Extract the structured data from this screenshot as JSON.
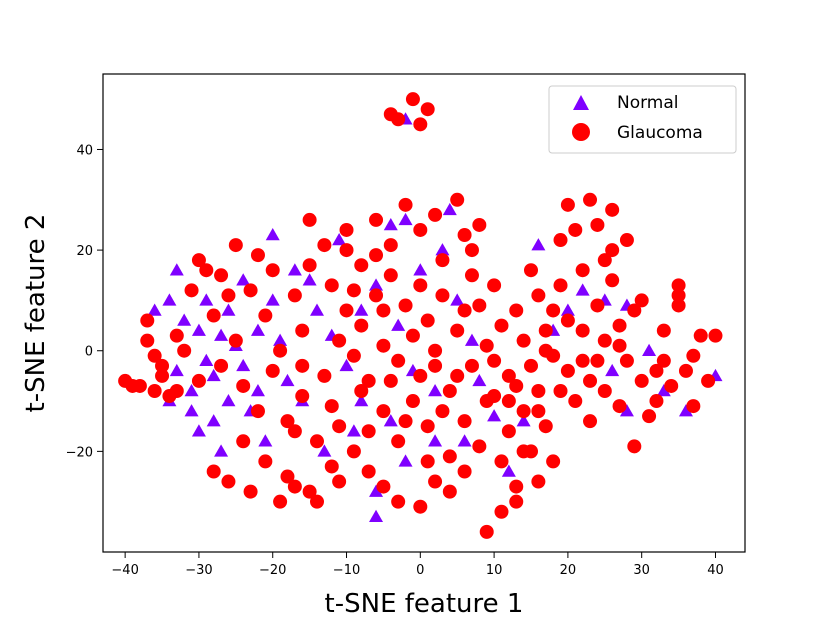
{
  "chart_data": {
    "type": "scatter",
    "title": "",
    "xlabel": "t-SNE feature 1",
    "ylabel": "t-SNE feature 2",
    "xlim": [
      -43,
      44
    ],
    "ylim": [
      -40,
      55
    ],
    "xticks": [
      -40,
      -30,
      -20,
      -10,
      0,
      10,
      20,
      30,
      40
    ],
    "yticks": [
      -20,
      0,
      20,
      40
    ],
    "grid": false,
    "legend_position": "top-right",
    "series": [
      {
        "name": "Normal",
        "marker": "triangle",
        "color": "#7f00ff",
        "points": [
          [
            -2,
            46
          ],
          [
            -33,
            16
          ],
          [
            -34,
            10
          ],
          [
            -36,
            8
          ],
          [
            -32,
            6
          ],
          [
            -30,
            4
          ],
          [
            -29,
            -2
          ],
          [
            -27,
            3
          ],
          [
            -28,
            -5
          ],
          [
            -31,
            -8
          ],
          [
            -33,
            -4
          ],
          [
            -25,
            1
          ],
          [
            -24,
            -3
          ],
          [
            -22,
            4
          ],
          [
            -26,
            -10
          ],
          [
            -28,
            -14
          ],
          [
            -27,
            -20
          ],
          [
            -30,
            -16
          ],
          [
            -23,
            -12
          ],
          [
            -21,
            -18
          ],
          [
            -20,
            10
          ],
          [
            -19,
            2
          ],
          [
            -18,
            -6
          ],
          [
            -20,
            23
          ],
          [
            -15,
            14
          ],
          [
            -14,
            8
          ],
          [
            -12,
            3
          ],
          [
            -11,
            22
          ],
          [
            -10,
            -3
          ],
          [
            -8,
            8
          ],
          [
            -6,
            13
          ],
          [
            -4,
            25
          ],
          [
            -2,
            26
          ],
          [
            -3,
            5
          ],
          [
            -1,
            -4
          ],
          [
            -4,
            -14
          ],
          [
            -6,
            -28
          ],
          [
            -6,
            -33
          ],
          [
            -2,
            -22
          ],
          [
            2,
            -18
          ],
          [
            2,
            -8
          ],
          [
            5,
            10
          ],
          [
            7,
            2
          ],
          [
            8,
            -6
          ],
          [
            6,
            -18
          ],
          [
            10,
            -13
          ],
          [
            12,
            -24
          ],
          [
            14,
            -14
          ],
          [
            18,
            4
          ],
          [
            20,
            8
          ],
          [
            22,
            12
          ],
          [
            25,
            10
          ],
          [
            28,
            9
          ],
          [
            26,
            -4
          ],
          [
            28,
            -12
          ],
          [
            31,
            0
          ],
          [
            33,
            -8
          ],
          [
            35,
            10
          ],
          [
            36,
            -12
          ],
          [
            40,
            -5
          ],
          [
            -34,
            -10
          ],
          [
            -26,
            8
          ],
          [
            -24,
            14
          ],
          [
            -16,
            -10
          ],
          [
            -13,
            -20
          ],
          [
            -9,
            -16
          ],
          [
            0,
            16
          ],
          [
            3,
            20
          ],
          [
            16,
            21
          ],
          [
            -17,
            16
          ],
          [
            -29,
            10
          ],
          [
            -31,
            -12
          ],
          [
            -22,
            -8
          ],
          [
            -8,
            -10
          ],
          [
            4,
            28
          ]
        ]
      },
      {
        "name": "Glaucoma",
        "marker": "circle",
        "color": "#ff0000",
        "points": [
          [
            -4,
            47
          ],
          [
            -1,
            50
          ],
          [
            1,
            48
          ],
          [
            -3,
            46
          ],
          [
            0,
            45
          ],
          [
            -40,
            -6
          ],
          [
            -38,
            -7
          ],
          [
            -37,
            2
          ],
          [
            -36,
            -1
          ],
          [
            -35,
            -5
          ],
          [
            -34,
            -9
          ],
          [
            -33,
            3
          ],
          [
            -32,
            0
          ],
          [
            -31,
            12
          ],
          [
            -30,
            18
          ],
          [
            -29,
            16
          ],
          [
            -28,
            7
          ],
          [
            -27,
            -3
          ],
          [
            -26,
            11
          ],
          [
            -25,
            21
          ],
          [
            -25,
            2
          ],
          [
            -24,
            -7
          ],
          [
            -23,
            12
          ],
          [
            -22,
            -12
          ],
          [
            -21,
            7
          ],
          [
            -21,
            -22
          ],
          [
            -20,
            16
          ],
          [
            -19,
            0
          ],
          [
            -18,
            -14
          ],
          [
            -18,
            -25
          ],
          [
            -17,
            11
          ],
          [
            -16,
            4
          ],
          [
            -16,
            -9
          ],
          [
            -15,
            26
          ],
          [
            -15,
            -28
          ],
          [
            -14,
            -30
          ],
          [
            -13,
            21
          ],
          [
            -13,
            -5
          ],
          [
            -12,
            13
          ],
          [
            -12,
            -23
          ],
          [
            -11,
            2
          ],
          [
            -11,
            -15
          ],
          [
            -10,
            24
          ],
          [
            -10,
            8
          ],
          [
            -9,
            -1
          ],
          [
            -9,
            -20
          ],
          [
            -8,
            17
          ],
          [
            -8,
            5
          ],
          [
            -7,
            -6
          ],
          [
            -7,
            -24
          ],
          [
            -6,
            26
          ],
          [
            -6,
            11
          ],
          [
            -5,
            1
          ],
          [
            -5,
            -12
          ],
          [
            -4,
            21
          ],
          [
            -4,
            15
          ],
          [
            -3,
            -2
          ],
          [
            -3,
            -18
          ],
          [
            -2,
            29
          ],
          [
            -2,
            9
          ],
          [
            -1,
            3
          ],
          [
            -1,
            -10
          ],
          [
            0,
            24
          ],
          [
            0,
            13
          ],
          [
            0,
            -31
          ],
          [
            1,
            6
          ],
          [
            1,
            -15
          ],
          [
            2,
            27
          ],
          [
            2,
            -3
          ],
          [
            2,
            -26
          ],
          [
            3,
            18
          ],
          [
            3,
            11
          ],
          [
            4,
            -8
          ],
          [
            4,
            -21
          ],
          [
            5,
            30
          ],
          [
            5,
            4
          ],
          [
            6,
            23
          ],
          [
            6,
            -14
          ],
          [
            7,
            15
          ],
          [
            7,
            -3
          ],
          [
            8,
            9
          ],
          [
            8,
            -19
          ],
          [
            9,
            -36
          ],
          [
            9,
            1
          ],
          [
            10,
            13
          ],
          [
            10,
            -9
          ],
          [
            11,
            -22
          ],
          [
            11,
            5
          ],
          [
            12,
            -5
          ],
          [
            12,
            -16
          ],
          [
            13,
            8
          ],
          [
            13,
            -27
          ],
          [
            14,
            -12
          ],
          [
            14,
            2
          ],
          [
            15,
            -3
          ],
          [
            15,
            -20
          ],
          [
            16,
            11
          ],
          [
            16,
            -8
          ],
          [
            17,
            4
          ],
          [
            17,
            -15
          ],
          [
            18,
            -1
          ],
          [
            18,
            -22
          ],
          [
            19,
            22
          ],
          [
            19,
            13
          ],
          [
            20,
            29
          ],
          [
            20,
            6
          ],
          [
            21,
            -10
          ],
          [
            21,
            24
          ],
          [
            22,
            16
          ],
          [
            22,
            -2
          ],
          [
            23,
            30
          ],
          [
            23,
            -14
          ],
          [
            24,
            25
          ],
          [
            24,
            9
          ],
          [
            25,
            2
          ],
          [
            25,
            -8
          ],
          [
            26,
            28
          ],
          [
            26,
            14
          ],
          [
            27,
            -11
          ],
          [
            27,
            5
          ],
          [
            28,
            22
          ],
          [
            28,
            -2
          ],
          [
            29,
            -19
          ],
          [
            30,
            10
          ],
          [
            30,
            -6
          ],
          [
            32,
            -10
          ],
          [
            33,
            4
          ],
          [
            34,
            -7
          ],
          [
            35,
            13
          ],
          [
            35,
            11
          ],
          [
            36,
            -4
          ],
          [
            37,
            -1
          ],
          [
            38,
            3
          ],
          [
            39,
            -6
          ],
          [
            40,
            3
          ],
          [
            -35,
            -3
          ],
          [
            -33,
            -8
          ],
          [
            -30,
            -6
          ],
          [
            -28,
            -24
          ],
          [
            -26,
            -26
          ],
          [
            -23,
            -28
          ],
          [
            -19,
            -30
          ],
          [
            -17,
            -27
          ],
          [
            -14,
            -18
          ],
          [
            -11,
            -26
          ],
          [
            -7,
            -16
          ],
          [
            -5,
            -27
          ],
          [
            -3,
            -30
          ],
          [
            1,
            -22
          ],
          [
            4,
            -28
          ],
          [
            6,
            -24
          ],
          [
            11,
            -32
          ],
          [
            13,
            -30
          ],
          [
            16,
            -26
          ],
          [
            -36,
            -8
          ],
          [
            -37,
            6
          ],
          [
            -22,
            19
          ],
          [
            -20,
            -4
          ],
          [
            -17,
            -16
          ],
          [
            -15,
            17
          ],
          [
            -12,
            -11
          ],
          [
            -8,
            -8
          ],
          [
            -6,
            19
          ],
          [
            -4,
            -6
          ],
          [
            0,
            -5
          ],
          [
            3,
            -12
          ],
          [
            5,
            -5
          ],
          [
            7,
            20
          ],
          [
            9,
            -10
          ],
          [
            12,
            -10
          ],
          [
            14,
            -20
          ],
          [
            15,
            16
          ],
          [
            18,
            8
          ],
          [
            20,
            -4
          ],
          [
            22,
            4
          ],
          [
            24,
            -2
          ],
          [
            26,
            20
          ],
          [
            31,
            -13
          ],
          [
            33,
            -2
          ],
          [
            -27,
            15
          ],
          [
            -24,
            -18
          ],
          [
            -16,
            -3
          ],
          [
            -9,
            12
          ],
          [
            -2,
            -14
          ],
          [
            2,
            0
          ],
          [
            6,
            8
          ],
          [
            10,
            -2
          ],
          [
            13,
            -7
          ],
          [
            16,
            -12
          ],
          [
            19,
            -8
          ],
          [
            23,
            -6
          ],
          [
            27,
            1
          ],
          [
            29,
            8
          ],
          [
            37,
            -11
          ],
          [
            -39,
            -7
          ],
          [
            -10,
            20
          ],
          [
            -5,
            8
          ],
          [
            8,
            25
          ],
          [
            17,
            0
          ],
          [
            25,
            18
          ],
          [
            32,
            -4
          ],
          [
            35,
            9
          ]
        ]
      }
    ]
  }
}
